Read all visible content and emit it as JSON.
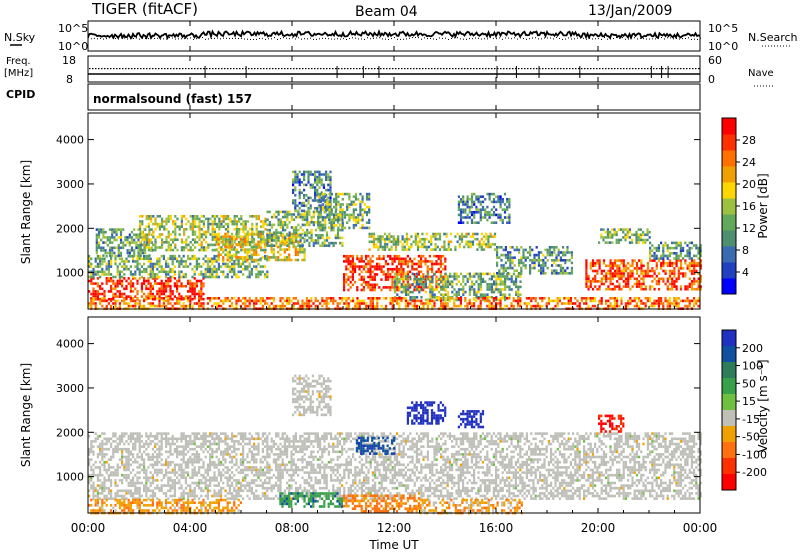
{
  "header": {
    "radar": "TIGER (fitACF)",
    "beam": "Beam 04",
    "date": "13/Jan/2009"
  },
  "side_labels": {
    "nsky": "N.Sky",
    "nsearch": "N.Search",
    "freq": "Freq.",
    "freq_unit": "[MHz]",
    "nave": "Nave",
    "cpid": "CPID"
  },
  "cpid_text": "normalsound (fast) 157",
  "noise_axis": {
    "left_ticks": [
      "10^5",
      "10^0"
    ],
    "right_ticks": [
      "10^5",
      "10^0"
    ]
  },
  "freq_axis": {
    "left_ticks": [
      "18",
      "8"
    ],
    "right_ticks": [
      "60",
      "0"
    ]
  },
  "colors": {
    "power_scale": [
      "#0000ff",
      "#2040c0",
      "#3a6ab0",
      "#4e8f70",
      "#62a85a",
      "#9cc040",
      "#ffd700",
      "#f0a000",
      "#ff7000",
      "#ff3000",
      "#ff0000"
    ],
    "velocity_scale": [
      "#2030c0",
      "#1050a0",
      "#2e7d5a",
      "#38a048",
      "#70c040",
      "#c0c0b8",
      "#f0a000",
      "#ff7010",
      "#ff3000",
      "#ff0000"
    ],
    "ground_scatter": "#bebeb8"
  },
  "chart_data": [
    {
      "type": "heatmap",
      "quantity": "Power",
      "ylabel": "Slant Range [km]",
      "ylim": [
        180,
        4600
      ],
      "yticks": [
        "1000",
        "2000",
        "3000",
        "4000"
      ],
      "xticks": [
        "00:00",
        "04:00",
        "08:00",
        "12:00",
        "16:00",
        "20:00",
        "00:00"
      ],
      "colorbar": {
        "label": "Power [dB]",
        "ticks": [
          "4",
          "8",
          "12",
          "16",
          "20",
          "24",
          "28"
        ],
        "range": [
          0,
          30
        ]
      },
      "echo_regions": [
        {
          "t": [
            0,
            4.5
          ],
          "r": [
            400,
            900
          ],
          "level": 28
        },
        {
          "t": [
            0,
            7
          ],
          "r": [
            900,
            1400
          ],
          "level": 12
        },
        {
          "t": [
            0.3,
            2.5
          ],
          "r": [
            1400,
            2000
          ],
          "level": 10
        },
        {
          "t": [
            2,
            7
          ],
          "r": [
            1500,
            2300
          ],
          "level": 14
        },
        {
          "t": [
            5,
            8.5
          ],
          "r": [
            1300,
            1900
          ],
          "level": 18
        },
        {
          "t": [
            7,
            10
          ],
          "r": [
            1600,
            2400
          ],
          "level": 12
        },
        {
          "t": [
            8,
            9.5
          ],
          "r": [
            2400,
            3300
          ],
          "level": 8
        },
        {
          "t": [
            9,
            11
          ],
          "r": [
            2000,
            2800
          ],
          "level": 12
        },
        {
          "t": [
            10,
            14
          ],
          "r": [
            600,
            1400
          ],
          "level": 28
        },
        {
          "t": [
            11,
            16
          ],
          "r": [
            1500,
            1900
          ],
          "level": 14
        },
        {
          "t": [
            12,
            17
          ],
          "r": [
            400,
            1000
          ],
          "level": 12
        },
        {
          "t": [
            14.5,
            16.5
          ],
          "r": [
            2100,
            2800
          ],
          "level": 8
        },
        {
          "t": [
            16,
            19
          ],
          "r": [
            1000,
            1600
          ],
          "level": 10
        },
        {
          "t": [
            19.5,
            24
          ],
          "r": [
            600,
            1300
          ],
          "level": 26
        },
        {
          "t": [
            20,
            22
          ],
          "r": [
            1700,
            2000
          ],
          "level": 12
        },
        {
          "t": [
            22,
            24
          ],
          "r": [
            1300,
            1700
          ],
          "level": 10
        },
        {
          "t": [
            0,
            24
          ],
          "r": [
            180,
            450
          ],
          "level": 24
        }
      ]
    },
    {
      "type": "heatmap",
      "quantity": "Velocity",
      "ylabel": "Slant Range [km]",
      "ylim": [
        180,
        4600
      ],
      "yticks": [
        "1000",
        "2000",
        "3000",
        "4000"
      ],
      "xticks": [
        "00:00",
        "04:00",
        "08:00",
        "12:00",
        "16:00",
        "20:00",
        "00:00"
      ],
      "xlabel": "Time UT",
      "colorbar": {
        "label": "Velocity [m s⁻¹]",
        "ticks": [
          "200",
          "100",
          "50",
          "15",
          "-15",
          "-50",
          "-100",
          "-200"
        ],
        "range": [
          -250,
          250
        ]
      },
      "echo_regions": [
        {
          "t": [
            0,
            24
          ],
          "r": [
            500,
            2000
          ],
          "ground_scatter": true
        },
        {
          "t": [
            8,
            9.5
          ],
          "r": [
            2400,
            3300
          ],
          "ground_scatter": true
        },
        {
          "t": [
            0,
            6
          ],
          "r": [
            180,
            500
          ],
          "velocity": -40
        },
        {
          "t": [
            7.5,
            10
          ],
          "r": [
            350,
            650
          ],
          "velocity": 60
        },
        {
          "t": [
            10,
            13
          ],
          "r": [
            200,
            600
          ],
          "velocity": -60
        },
        {
          "t": [
            13,
            17
          ],
          "r": [
            200,
            500
          ],
          "velocity": -30
        },
        {
          "t": [
            10.5,
            12
          ],
          "r": [
            1500,
            1900
          ],
          "velocity": 130
        },
        {
          "t": [
            12.5,
            14
          ],
          "r": [
            2200,
            2700
          ],
          "velocity": 180
        },
        {
          "t": [
            14.5,
            15.5
          ],
          "r": [
            2100,
            2500
          ],
          "velocity": 200
        },
        {
          "t": [
            20,
            21
          ],
          "r": [
            2000,
            2400
          ],
          "velocity": -200
        }
      ]
    }
  ]
}
